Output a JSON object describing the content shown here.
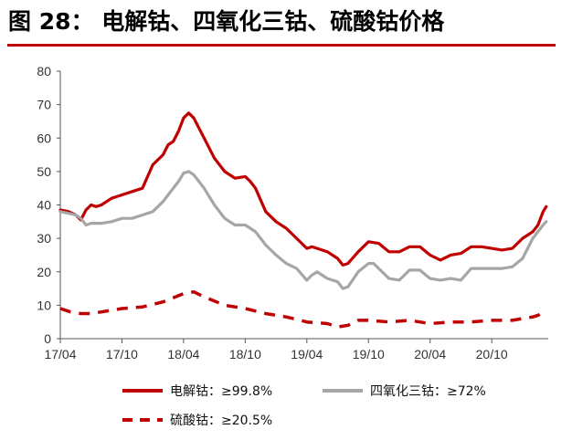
{
  "header": {
    "title": "图 28：  电解钴、四氧化三钴、硫酸钴价格"
  },
  "chart_data": {
    "type": "line",
    "title": "电解钴、四氧化三钴、硫酸钴价格",
    "xlabel": "",
    "ylabel": "",
    "ylim": [
      0,
      80
    ],
    "yticks": [
      0,
      10,
      20,
      30,
      40,
      50,
      60,
      70,
      80
    ],
    "x_tick_labels": [
      "17/04",
      "17/10",
      "18/04",
      "18/10",
      "19/04",
      "19/10",
      "20/04",
      "20/10"
    ],
    "x_tick_months": [
      0,
      6,
      12,
      18,
      24,
      30,
      36,
      42
    ],
    "x_unit": "months since 17/04",
    "xlim": [
      0,
      47.5
    ],
    "legend_position": "bottom",
    "grid": false,
    "series": [
      {
        "name": "电解钴：≥99.8%",
        "color": "#c00000",
        "style": "solid",
        "x": [
          0,
          0.8,
          1.5,
          2.0,
          2.5,
          3.0,
          3.5,
          4.0,
          5.0,
          6.0,
          7.0,
          8.0,
          9.0,
          10.0,
          10.5,
          11.0,
          11.5,
          12.0,
          12.5,
          13.0,
          14.0,
          15.0,
          16.0,
          17.0,
          18.0,
          18.5,
          19.0,
          20.0,
          21.0,
          22.0,
          23.0,
          24.0,
          24.5,
          25.0,
          26.0,
          27.0,
          27.5,
          28.0,
          29.0,
          30.0,
          31.0,
          32.0,
          33.0,
          34.0,
          35.0,
          36.0,
          37.0,
          38.0,
          39.0,
          40.0,
          41.0,
          42.0,
          43.0,
          44.0,
          45.0,
          45.5,
          46.0,
          46.5,
          47.0,
          47.3
        ],
        "values": [
          38.5,
          38,
          37,
          35.5,
          38.5,
          40,
          39.5,
          40,
          42,
          43,
          44,
          45,
          52,
          55,
          58,
          59,
          62,
          66,
          67.5,
          66,
          60,
          54,
          50,
          48,
          48.5,
          47,
          45,
          38,
          35,
          33,
          30,
          27,
          27.5,
          27,
          26,
          24,
          22,
          22.5,
          26,
          29,
          28.5,
          26,
          26,
          27.5,
          27.5,
          25,
          23.5,
          25,
          25.5,
          27.5,
          27.5,
          27,
          26.5,
          27,
          30,
          31,
          32,
          34,
          38,
          39.5
        ]
      },
      {
        "name": "四氧化三钴：≥72%",
        "color": "#a6a6a6",
        "style": "solid",
        "x": [
          0,
          0.8,
          1.5,
          2.0,
          2.5,
          3.0,
          4.0,
          5.0,
          6.0,
          7.0,
          8.0,
          9.0,
          10.0,
          10.5,
          11.0,
          11.5,
          12.0,
          12.5,
          13.0,
          14.0,
          15.0,
          16.0,
          17.0,
          18.0,
          18.5,
          19.0,
          20.0,
          21.0,
          22.0,
          23.0,
          24.0,
          24.5,
          25.0,
          26.0,
          27.0,
          27.5,
          28.0,
          29.0,
          30.0,
          30.5,
          31.0,
          32.0,
          33.0,
          34.0,
          35.0,
          36.0,
          37.0,
          38.0,
          39.0,
          40.0,
          41.0,
          42.0,
          43.0,
          44.0,
          45.0,
          45.5,
          46.0,
          46.5,
          47.0,
          47.3
        ],
        "values": [
          38,
          37.5,
          37,
          36,
          34,
          34.5,
          34.5,
          35,
          36,
          36,
          37,
          38,
          41,
          43,
          45,
          47,
          49.5,
          50,
          49,
          45,
          40,
          36,
          34,
          34,
          33,
          32,
          28,
          25,
          22.5,
          21,
          17.5,
          19,
          20,
          18,
          17,
          15,
          15.5,
          20,
          22.5,
          22.5,
          21,
          18,
          17.5,
          20.5,
          20.5,
          18,
          17.5,
          18,
          17.5,
          21,
          21,
          21,
          21,
          21.5,
          24,
          27,
          30,
          32,
          34,
          35
        ]
      },
      {
        "name": "硫酸钴：≥20.5%",
        "color": "#c00000",
        "style": "dashed",
        "x": [
          0,
          1.0,
          2.0,
          3.0,
          4.0,
          6.0,
          8.0,
          10.0,
          12.0,
          13.0,
          14.0,
          16.0,
          18.0,
          20.0,
          22.0,
          24.0,
          26.0,
          27.0,
          28.0,
          29.0,
          30.0,
          32.0,
          34.0,
          36.0,
          38.0,
          40.0,
          42.0,
          44.0,
          45.0,
          46.0,
          46.5,
          47.0,
          47.3
        ],
        "values": [
          9,
          8,
          7.5,
          7.5,
          8,
          9,
          9.5,
          11,
          13.5,
          14,
          12.5,
          10,
          9,
          7.5,
          6.5,
          5,
          4.5,
          3.5,
          4,
          5.5,
          5.5,
          5,
          5.5,
          4.5,
          5,
          5,
          5.5,
          5.5,
          6,
          6.5,
          7,
          8,
          8.5
        ]
      }
    ]
  }
}
